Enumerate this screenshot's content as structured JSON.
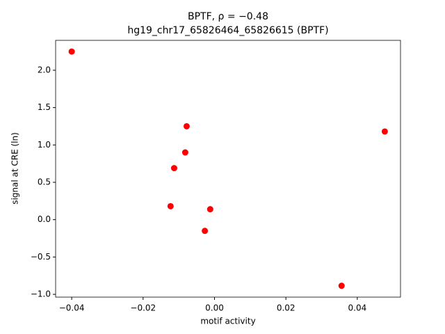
{
  "chart_data": {
    "type": "scatter",
    "title": "BPTF, ρ = −0.48",
    "subtitle": "hg19_chr17_65826464_65826615 (BPTF)",
    "x_label": "motif activity",
    "y_label": "signal at CRE (ln)",
    "color": "#ff0000",
    "x": [
      -0.04,
      -0.0078,
      -0.0082,
      -0.0113,
      -0.0123,
      -0.0012,
      -0.0027,
      0.0356,
      0.0477
    ],
    "values": [
      2.25,
      1.25,
      0.9,
      0.69,
      0.18,
      0.14,
      -0.15,
      -0.885,
      1.18
    ],
    "xlim": [
      -0.0445,
      0.0521
    ],
    "ylim": [
      -1.037,
      2.4
    ],
    "xticks": [
      {
        "value": -0.04,
        "label": "−0.04"
      },
      {
        "value": -0.02,
        "label": "−0.02"
      },
      {
        "value": 0,
        "label": "0.00"
      },
      0.02,
      0.04
    ],
    "yticks": [
      {
        "value": -1,
        "label": "−1.0"
      },
      {
        "value": -0.5,
        "label": "−0.5"
      },
      {
        "value": 0,
        "label": "0.0"
      },
      0.5,
      {
        "value": 1,
        "label": "1.0"
      },
      1.5,
      {
        "value": 2,
        "label": "2.0"
      }
    ],
    "grid": false
  }
}
